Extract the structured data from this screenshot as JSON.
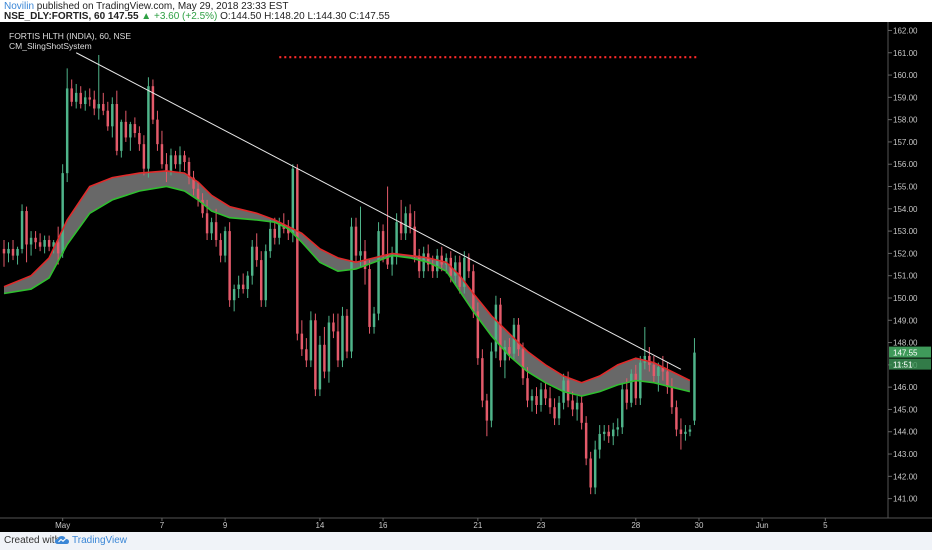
{
  "header": {
    "author": "Novilin",
    "published_text": "published on TradingView.com, May 29, 2018 23:33 EST",
    "symbol": "NSE_DLY:FORTIS, 60",
    "last": "147.55",
    "change": "▲ +3.60 (+2.5%)",
    "open": "O:144.50",
    "high": "H:148.20",
    "low": "L:144.30",
    "close": "C:147.55"
  },
  "legend": {
    "title": "FORTIS HLTH (INDIA), 60, NSE",
    "indicator": "CM_SlingShotSystem"
  },
  "footer": {
    "created_with": "Created with",
    "brand": "TradingView"
  },
  "colors": {
    "background": "#000000",
    "bull": "#4fb48a",
    "bear": "#e45a6a",
    "ema_fast": "#e02a2a",
    "ema_slow": "#2fbf2f",
    "cloud": "#7a7a7a",
    "trendline": "#e8e8e8",
    "resistance": "#ff2a2a",
    "price_badge": "#3f9a5a",
    "axis_text": "#c8c8c8"
  },
  "chart_data": {
    "type": "candlestick",
    "yticks": [
      "141.00",
      "142.00",
      "143.00",
      "144.00",
      "145.00",
      "146.00",
      "147.00",
      "148.00",
      "149.00",
      "150.00",
      "151.00",
      "152.00",
      "153.00",
      "154.00",
      "155.00",
      "156.00",
      "157.00",
      "158.00",
      "159.00",
      "160.00",
      "161.00",
      "162.00"
    ],
    "ylim": [
      140.4,
      162.2
    ],
    "xticks": [
      {
        "label": "May",
        "bar": 13
      },
      {
        "label": "7",
        "bar": 35
      },
      {
        "label": "9",
        "bar": 49
      },
      {
        "label": "14",
        "bar": 70
      },
      {
        "label": "16",
        "bar": 84
      },
      {
        "label": "21",
        "bar": 105
      },
      {
        "label": "23",
        "bar": 119
      },
      {
        "label": "28",
        "bar": 140
      },
      {
        "label": "30",
        "bar": 154
      },
      {
        "label": "Jun",
        "bar": 168
      },
      {
        "label": "5",
        "bar": 182
      }
    ],
    "xrange": [
      0,
      195
    ],
    "last_price": "147.55",
    "secondary_badge": "11:51",
    "resistance": {
      "value": 160.8,
      "bar_start": 61,
      "bar_end": 154
    },
    "trendline": [
      {
        "bar": 16,
        "value": 161.0
      },
      {
        "bar": 150,
        "value": 146.8
      }
    ],
    "ema_fast": [
      [
        0,
        150.5
      ],
      [
        6,
        151.0
      ],
      [
        10,
        151.8
      ],
      [
        14,
        153.5
      ],
      [
        19,
        155.0
      ],
      [
        24,
        155.4
      ],
      [
        30,
        155.6
      ],
      [
        36,
        155.7
      ],
      [
        40,
        155.6
      ],
      [
        43,
        155.2
      ],
      [
        46,
        154.6
      ],
      [
        50,
        154.1
      ],
      [
        56,
        153.8
      ],
      [
        60,
        153.5
      ],
      [
        63,
        153.2
      ],
      [
        66,
        152.9
      ],
      [
        70,
        152.2
      ],
      [
        74,
        151.8
      ],
      [
        78,
        151.6
      ],
      [
        82,
        151.8
      ],
      [
        86,
        152.0
      ],
      [
        90,
        151.9
      ],
      [
        94,
        151.8
      ],
      [
        98,
        151.6
      ],
      [
        101,
        151.0
      ],
      [
        104,
        150.2
      ],
      [
        108,
        149.2
      ],
      [
        112,
        148.4
      ],
      [
        116,
        147.6
      ],
      [
        120,
        147.0
      ],
      [
        124,
        146.5
      ],
      [
        128,
        146.2
      ],
      [
        132,
        146.5
      ],
      [
        136,
        147.0
      ],
      [
        140,
        147.3
      ],
      [
        144,
        147.1
      ],
      [
        148,
        146.7
      ],
      [
        152,
        146.3
      ]
    ],
    "ema_slow": [
      [
        0,
        150.2
      ],
      [
        6,
        150.4
      ],
      [
        10,
        150.9
      ],
      [
        14,
        152.4
      ],
      [
        19,
        153.8
      ],
      [
        24,
        154.4
      ],
      [
        30,
        154.8
      ],
      [
        36,
        155.0
      ],
      [
        40,
        154.8
      ],
      [
        43,
        154.4
      ],
      [
        46,
        153.9
      ],
      [
        50,
        153.6
      ],
      [
        56,
        153.5
      ],
      [
        60,
        153.4
      ],
      [
        63,
        153.1
      ],
      [
        66,
        152.5
      ],
      [
        70,
        151.6
      ],
      [
        74,
        151.2
      ],
      [
        78,
        151.3
      ],
      [
        82,
        151.6
      ],
      [
        86,
        151.9
      ],
      [
        90,
        151.8
      ],
      [
        94,
        151.6
      ],
      [
        98,
        151.2
      ],
      [
        101,
        150.3
      ],
      [
        104,
        149.4
      ],
      [
        108,
        148.3
      ],
      [
        112,
        147.4
      ],
      [
        116,
        146.7
      ],
      [
        120,
        146.2
      ],
      [
        124,
        145.8
      ],
      [
        128,
        145.6
      ],
      [
        132,
        145.8
      ],
      [
        136,
        146.1
      ],
      [
        140,
        146.3
      ],
      [
        144,
        146.2
      ],
      [
        148,
        146.0
      ],
      [
        152,
        145.8
      ]
    ],
    "candles": [
      [
        0,
        152.2,
        152.6,
        151.4,
        152.0
      ],
      [
        1,
        152.0,
        152.5,
        151.6,
        152.2
      ],
      [
        2,
        152.2,
        152.6,
        151.7,
        151.9
      ],
      [
        3,
        151.9,
        152.3,
        151.5,
        152.2
      ],
      [
        4,
        152.2,
        154.2,
        152.0,
        153.9
      ],
      [
        5,
        153.9,
        154.1,
        151.6,
        152.4
      ],
      [
        6,
        152.4,
        153.0,
        151.9,
        152.7
      ],
      [
        7,
        152.7,
        153.0,
        152.2,
        152.5
      ],
      [
        8,
        152.5,
        152.9,
        152.1,
        152.3
      ],
      [
        9,
        152.3,
        152.8,
        152.0,
        152.6
      ],
      [
        10,
        152.6,
        152.8,
        152.1,
        152.3
      ],
      [
        11,
        152.3,
        152.6,
        152.0,
        152.5
      ],
      [
        12,
        152.5,
        153.2,
        151.5,
        152.0
      ],
      [
        13,
        152.0,
        156.0,
        151.8,
        155.6
      ],
      [
        14,
        155.6,
        160.3,
        155.2,
        159.4
      ],
      [
        15,
        159.4,
        159.8,
        158.6,
        158.8
      ],
      [
        16,
        158.8,
        159.6,
        158.5,
        159.2
      ],
      [
        17,
        159.2,
        159.5,
        158.5,
        158.7
      ],
      [
        18,
        158.7,
        159.3,
        158.4,
        159.0
      ],
      [
        19,
        159.0,
        159.4,
        158.6,
        158.9
      ],
      [
        20,
        158.9,
        159.3,
        158.2,
        158.5
      ],
      [
        21,
        158.5,
        160.9,
        158.0,
        158.7
      ],
      [
        22,
        158.7,
        159.2,
        158.2,
        158.4
      ],
      [
        23,
        158.4,
        158.8,
        157.5,
        157.7
      ],
      [
        24,
        157.7,
        159.0,
        157.2,
        158.7
      ],
      [
        25,
        158.7,
        159.3,
        156.4,
        156.6
      ],
      [
        26,
        156.6,
        158.0,
        156.3,
        157.9
      ],
      [
        27,
        157.9,
        158.4,
        157.0,
        157.2
      ],
      [
        28,
        157.2,
        157.9,
        156.6,
        157.8
      ],
      [
        29,
        157.8,
        158.1,
        157.2,
        157.4
      ],
      [
        30,
        157.4,
        157.7,
        156.6,
        156.9
      ],
      [
        31,
        156.9,
        157.3,
        155.5,
        155.8
      ],
      [
        32,
        155.8,
        159.9,
        155.4,
        159.5
      ],
      [
        33,
        159.5,
        159.8,
        157.8,
        158.0
      ],
      [
        34,
        158.0,
        158.4,
        156.6,
        156.9
      ],
      [
        35,
        156.9,
        157.5,
        155.8,
        156.0
      ],
      [
        36,
        156.0,
        156.5,
        155.2,
        155.7
      ],
      [
        37,
        155.7,
        156.7,
        155.5,
        156.4
      ],
      [
        38,
        156.4,
        156.6,
        155.8,
        156.0
      ],
      [
        39,
        156.0,
        156.8,
        155.6,
        156.4
      ],
      [
        40,
        156.4,
        156.6,
        155.7,
        156.1
      ],
      [
        41,
        156.1,
        156.3,
        155.1,
        155.4
      ],
      [
        42,
        155.4,
        155.7,
        154.6,
        154.9
      ],
      [
        43,
        154.9,
        155.2,
        154.1,
        154.4
      ],
      [
        44,
        154.4,
        154.7,
        153.6,
        153.8
      ],
      [
        45,
        153.8,
        154.4,
        152.6,
        152.9
      ],
      [
        46,
        152.9,
        153.6,
        152.6,
        153.4
      ],
      [
        47,
        153.4,
        154.0,
        152.3,
        152.6
      ],
      [
        48,
        152.6,
        152.9,
        151.6,
        151.9
      ],
      [
        49,
        151.9,
        153.2,
        151.6,
        153.0
      ],
      [
        50,
        153.0,
        153.4,
        149.6,
        149.9
      ],
      [
        51,
        149.9,
        150.6,
        149.4,
        150.4
      ],
      [
        52,
        150.4,
        151.0,
        150.0,
        150.6
      ],
      [
        53,
        150.6,
        151.1,
        150.2,
        150.4
      ],
      [
        54,
        150.4,
        151.2,
        150.0,
        151.0
      ],
      [
        55,
        151.0,
        152.6,
        150.6,
        152.3
      ],
      [
        56,
        152.3,
        152.9,
        151.4,
        151.7
      ],
      [
        57,
        151.7,
        152.1,
        149.6,
        149.9
      ],
      [
        58,
        149.9,
        152.4,
        149.6,
        152.1
      ],
      [
        59,
        152.1,
        153.5,
        151.8,
        153.1
      ],
      [
        60,
        153.1,
        153.6,
        152.4,
        152.7
      ],
      [
        61,
        152.7,
        153.6,
        152.4,
        153.3
      ],
      [
        62,
        153.3,
        153.8,
        152.9,
        153.1
      ],
      [
        63,
        153.1,
        153.5,
        152.6,
        152.9
      ],
      [
        64,
        152.9,
        156.0,
        152.5,
        155.8
      ],
      [
        65,
        155.8,
        156.0,
        148.1,
        148.4
      ],
      [
        66,
        148.4,
        149.0,
        147.4,
        147.7
      ],
      [
        67,
        147.7,
        148.2,
        146.9,
        147.2
      ],
      [
        68,
        147.2,
        149.4,
        146.9,
        149.0
      ],
      [
        69,
        149.0,
        149.3,
        145.6,
        145.9
      ],
      [
        70,
        145.9,
        148.3,
        145.6,
        147.9
      ],
      [
        71,
        147.9,
        148.7,
        146.4,
        146.7
      ],
      [
        72,
        146.7,
        149.2,
        146.2,
        148.9
      ],
      [
        73,
        148.9,
        149.3,
        148.2,
        148.5
      ],
      [
        74,
        148.5,
        149.3,
        146.9,
        147.2
      ],
      [
        75,
        147.2,
        149.6,
        146.9,
        149.2
      ],
      [
        76,
        149.2,
        149.5,
        147.3,
        147.6
      ],
      [
        77,
        147.6,
        153.6,
        147.3,
        153.2
      ],
      [
        78,
        153.2,
        153.6,
        151.6,
        151.9
      ],
      [
        79,
        151.9,
        154.1,
        151.4,
        152.1
      ],
      [
        80,
        152.1,
        152.6,
        150.6,
        151.3
      ],
      [
        81,
        151.3,
        151.7,
        148.4,
        148.7
      ],
      [
        82,
        148.7,
        149.6,
        148.4,
        149.3
      ],
      [
        83,
        149.3,
        153.4,
        149.0,
        153.0
      ],
      [
        84,
        153.0,
        153.3,
        151.6,
        151.9
      ],
      [
        85,
        151.9,
        155.0,
        151.3,
        151.5
      ],
      [
        86,
        151.5,
        152.3,
        151.0,
        151.9
      ],
      [
        87,
        151.9,
        153.8,
        151.5,
        153.4
      ],
      [
        88,
        153.4,
        154.4,
        152.6,
        152.9
      ],
      [
        89,
        152.9,
        154.1,
        152.6,
        153.8
      ],
      [
        90,
        153.8,
        154.2,
        152.9,
        153.2
      ],
      [
        91,
        153.2,
        153.9,
        151.6,
        151.9
      ],
      [
        92,
        151.9,
        152.2,
        150.9,
        151.2
      ],
      [
        93,
        151.2,
        152.3,
        150.9,
        152.0
      ],
      [
        94,
        152.0,
        152.4,
        151.2,
        151.5
      ],
      [
        95,
        151.5,
        151.9,
        150.9,
        151.2
      ],
      [
        96,
        151.2,
        152.2,
        150.9,
        151.9
      ],
      [
        97,
        151.9,
        152.3,
        151.2,
        151.5
      ],
      [
        98,
        151.5,
        152.0,
        151.1,
        151.8
      ],
      [
        99,
        151.8,
        152.1,
        150.7,
        151.0
      ],
      [
        100,
        151.0,
        151.9,
        150.6,
        151.6
      ],
      [
        101,
        151.6,
        151.9,
        150.2,
        150.5
      ],
      [
        102,
        150.5,
        152.1,
        150.2,
        151.8
      ],
      [
        103,
        151.8,
        152.0,
        150.9,
        151.2
      ],
      [
        104,
        151.2,
        151.5,
        149.1,
        149.4
      ],
      [
        105,
        149.4,
        149.8,
        147.0,
        147.3
      ],
      [
        106,
        147.3,
        147.7,
        145.1,
        145.4
      ],
      [
        107,
        145.4,
        145.7,
        143.8,
        144.5
      ],
      [
        108,
        144.5,
        148.0,
        144.2,
        147.6
      ],
      [
        109,
        147.6,
        150.1,
        147.3,
        149.7
      ],
      [
        110,
        149.7,
        150.0,
        146.9,
        147.2
      ],
      [
        111,
        147.2,
        148.1,
        146.4,
        147.8
      ],
      [
        112,
        147.8,
        148.2,
        147.2,
        147.5
      ],
      [
        113,
        147.5,
        149.1,
        147.2,
        148.8
      ],
      [
        114,
        148.8,
        149.1,
        147.4,
        147.7
      ],
      [
        115,
        147.7,
        148.0,
        146.1,
        146.4
      ],
      [
        116,
        146.4,
        146.9,
        145.1,
        145.4
      ],
      [
        117,
        145.4,
        145.9,
        144.9,
        145.6
      ],
      [
        118,
        145.6,
        146.0,
        144.8,
        145.2
      ],
      [
        119,
        145.2,
        146.2,
        144.9,
        145.9
      ],
      [
        120,
        145.9,
        146.2,
        145.2,
        145.5
      ],
      [
        121,
        145.5,
        146.0,
        144.8,
        145.1
      ],
      [
        122,
        145.1,
        145.5,
        144.3,
        144.6
      ],
      [
        123,
        144.6,
        145.6,
        144.3,
        145.3
      ],
      [
        124,
        145.3,
        146.6,
        145.0,
        146.3
      ],
      [
        125,
        146.3,
        146.7,
        145.1,
        145.4
      ],
      [
        126,
        145.4,
        145.8,
        144.7,
        145.0
      ],
      [
        127,
        145.0,
        145.6,
        144.5,
        145.3
      ],
      [
        128,
        145.3,
        145.6,
        144.1,
        144.4
      ],
      [
        129,
        144.4,
        144.7,
        142.5,
        142.8
      ],
      [
        130,
        142.8,
        143.1,
        141.2,
        141.5
      ],
      [
        131,
        141.5,
        143.6,
        141.2,
        143.2
      ],
      [
        132,
        143.2,
        144.3,
        142.8,
        143.9
      ],
      [
        133,
        143.9,
        144.3,
        143.6,
        144.0
      ],
      [
        134,
        144.0,
        144.3,
        143.5,
        143.8
      ],
      [
        135,
        143.8,
        144.4,
        143.4,
        144.1
      ],
      [
        136,
        144.1,
        144.6,
        143.8,
        144.2
      ],
      [
        137,
        144.2,
        146.2,
        143.9,
        145.9
      ],
      [
        138,
        145.9,
        146.4,
        145.0,
        145.3
      ],
      [
        139,
        145.3,
        146.8,
        145.1,
        146.6
      ],
      [
        140,
        146.6,
        147.0,
        145.2,
        145.5
      ],
      [
        141,
        145.5,
        147.4,
        145.2,
        147.1
      ],
      [
        142,
        147.1,
        148.7,
        146.8,
        147.4
      ],
      [
        143,
        147.4,
        147.8,
        146.7,
        147.0
      ],
      [
        144,
        147.0,
        147.4,
        146.2,
        146.5
      ],
      [
        145,
        146.5,
        147.1,
        145.8,
        146.9
      ],
      [
        146,
        146.9,
        147.4,
        146.3,
        146.7
      ],
      [
        147,
        146.7,
        147.1,
        145.7,
        146.0
      ],
      [
        148,
        146.0,
        146.4,
        144.8,
        145.1
      ],
      [
        149,
        145.1,
        145.4,
        143.8,
        144.1
      ],
      [
        150,
        144.1,
        144.6,
        143.2,
        143.9
      ],
      [
        151,
        143.9,
        144.3,
        143.6,
        144.0
      ],
      [
        152,
        144.0,
        144.3,
        143.8,
        144.1
      ],
      [
        153,
        144.5,
        148.2,
        144.3,
        147.55
      ]
    ]
  }
}
